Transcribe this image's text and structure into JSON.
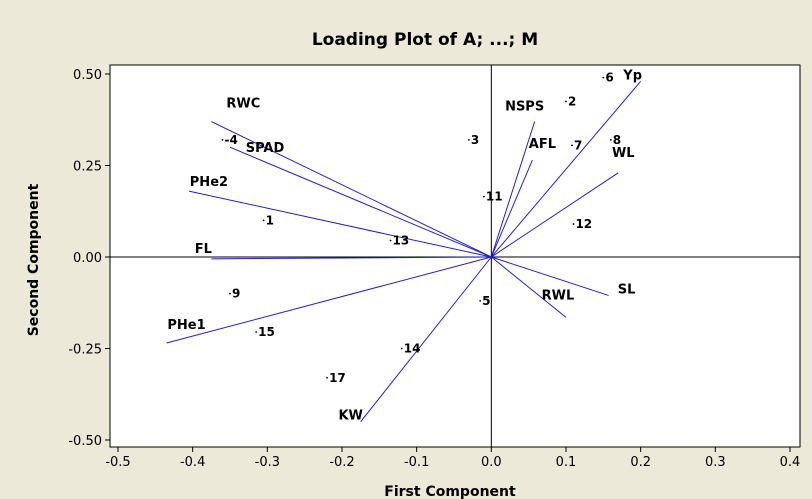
{
  "chart_data": {
    "type": "scatter",
    "title": "Loading Plot of A; ...; M",
    "xlabel": "First Component",
    "ylabel": "Second Component",
    "xlim": [
      -0.5,
      0.4
    ],
    "ylim": [
      -0.5,
      0.5
    ],
    "x_ticks": [
      "-0.5",
      "-0.4",
      "-0.3",
      "-0.2",
      "-0.1",
      "0.0",
      "0.1",
      "0.2",
      "0.3",
      "0.4"
    ],
    "y_ticks": [
      "-0.50",
      "-0.25",
      "0.00",
      "0.25",
      "0.50"
    ],
    "grid": false,
    "reference_lines": [
      {
        "axis": "x",
        "value": 0
      },
      {
        "axis": "y",
        "value": 0
      }
    ],
    "loadings": [
      {
        "name": "RWC",
        "x": -0.375,
        "y": 0.37
      },
      {
        "name": "SPAD",
        "x": -0.35,
        "y": 0.3
      },
      {
        "name": "PHe2",
        "x": -0.405,
        "y": 0.18
      },
      {
        "name": "FL",
        "x": -0.375,
        "y": -0.005
      },
      {
        "name": "PHe1",
        "x": -0.435,
        "y": -0.235
      },
      {
        "name": "KW",
        "x": -0.175,
        "y": -0.45
      },
      {
        "name": "NSPS",
        "x": 0.058,
        "y": 0.37
      },
      {
        "name": "AFL",
        "x": 0.055,
        "y": 0.265
      },
      {
        "name": "Yp",
        "x": 0.2,
        "y": 0.48
      },
      {
        "name": "WL",
        "x": 0.17,
        "y": 0.23
      },
      {
        "name": "SL",
        "x": 0.157,
        "y": -0.105
      },
      {
        "name": "RWL",
        "x": 0.1,
        "y": -0.165
      }
    ],
    "observations": [
      {
        "label": "1",
        "x": -0.305,
        "y": 0.1
      },
      {
        "label": "-4",
        "x": -0.36,
        "y": 0.32
      },
      {
        "label": "3",
        "x": -0.03,
        "y": 0.32
      },
      {
        "label": "2",
        "x": 0.1,
        "y": 0.425
      },
      {
        "label": "6",
        "x": 0.15,
        "y": 0.49
      },
      {
        "label": "7",
        "x": 0.108,
        "y": 0.305
      },
      {
        "label": "8",
        "x": 0.16,
        "y": 0.32
      },
      {
        "label": "9",
        "x": -0.35,
        "y": -0.1
      },
      {
        "label": "11",
        "x": -0.01,
        "y": 0.165
      },
      {
        "label": "12",
        "x": 0.11,
        "y": 0.09
      },
      {
        "label": "13",
        "x": -0.135,
        "y": 0.045
      },
      {
        "label": "14",
        "x": -0.12,
        "y": -0.25
      },
      {
        "label": "15",
        "x": -0.315,
        "y": -0.205
      },
      {
        "label": "17",
        "x": -0.22,
        "y": -0.33
      },
      {
        "label": "5",
        "x": -0.015,
        "y": -0.12
      }
    ]
  },
  "colors": {
    "background": "#ece9d8",
    "plot_background": "#ffffff",
    "loading_line": "#1f1fd6",
    "axis": "#000000"
  }
}
